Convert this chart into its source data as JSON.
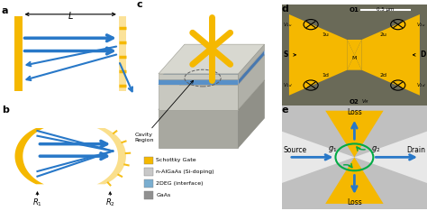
{
  "bg_color": "#ffffff",
  "yellow": "#F5B800",
  "blue": "#2878C8",
  "gray_box": "#B0B0B0",
  "gray_top": "#D0D0D0",
  "gray_right": "#989898",
  "gray_dark": "#787870",
  "blue_2deg": "#7AAED0",
  "blue_2deg_top": "#5890B8",
  "green": "#00AA44",
  "legend_items": [
    [
      "#F5B800",
      "Schottky Gate"
    ],
    [
      "#C8C8C8",
      "n-AlGaAs (Si-doping)"
    ],
    [
      "#7AAED0",
      "2DEG (interface)"
    ],
    [
      "#909090",
      "GaAs"
    ]
  ]
}
